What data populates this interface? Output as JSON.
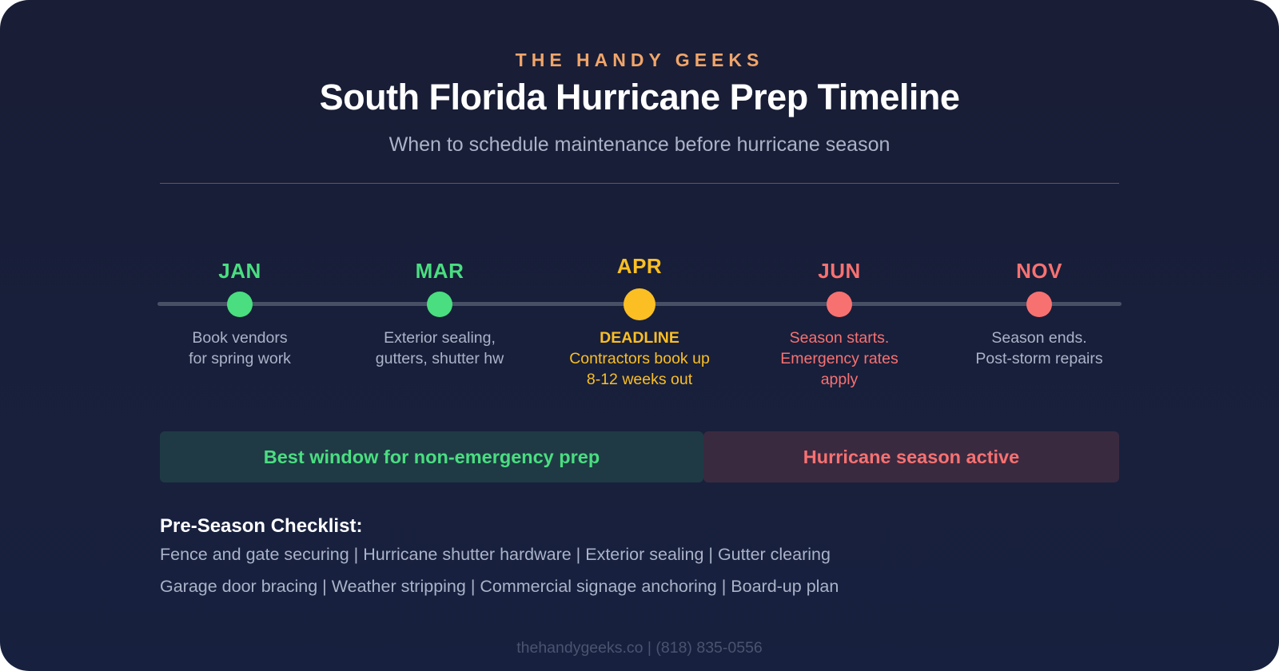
{
  "header": {
    "brand": "THE HANDY GEEKS",
    "title": "South Florida Hurricane Prep Timeline",
    "subtitle": "When to schedule maintenance before hurricane season"
  },
  "timeline": [
    {
      "month": "JAN",
      "color": "#4ade80",
      "lines": [
        "Book vendors",
        "for spring work"
      ],
      "desc_color": "#aab3c8"
    },
    {
      "month": "MAR",
      "color": "#4ade80",
      "lines": [
        "Exterior sealing,",
        "gutters, shutter hw"
      ],
      "desc_color": "#aab3c8"
    },
    {
      "month": "APR",
      "color": "#fbbf24",
      "lines": [
        "DEADLINE",
        "Contractors book up",
        "8-12 weeks out"
      ],
      "desc_color": "#fbbf24",
      "highlight": true
    },
    {
      "month": "JUN",
      "color": "#f87171",
      "lines": [
        "Season starts.",
        "Emergency rates",
        "apply"
      ],
      "desc_color": "#f87171"
    },
    {
      "month": "NOV",
      "color": "#f87171",
      "lines": [
        "Season ends.",
        "Post-storm repairs"
      ],
      "desc_color": "#aab3c8"
    }
  ],
  "bands": {
    "prep_window": "Best window for non-emergency prep",
    "season_active": "Hurricane season active"
  },
  "checklist": {
    "title": "Pre-Season Checklist:",
    "lines": [
      "Fence and gate securing | Hurricane shutter hardware | Exterior sealing | Gutter clearing",
      "Garage door bracing | Weather stripping | Commercial signage anchoring | Board-up plan"
    ]
  },
  "footer": "thehandygeeks.co | (818) 835-0556"
}
